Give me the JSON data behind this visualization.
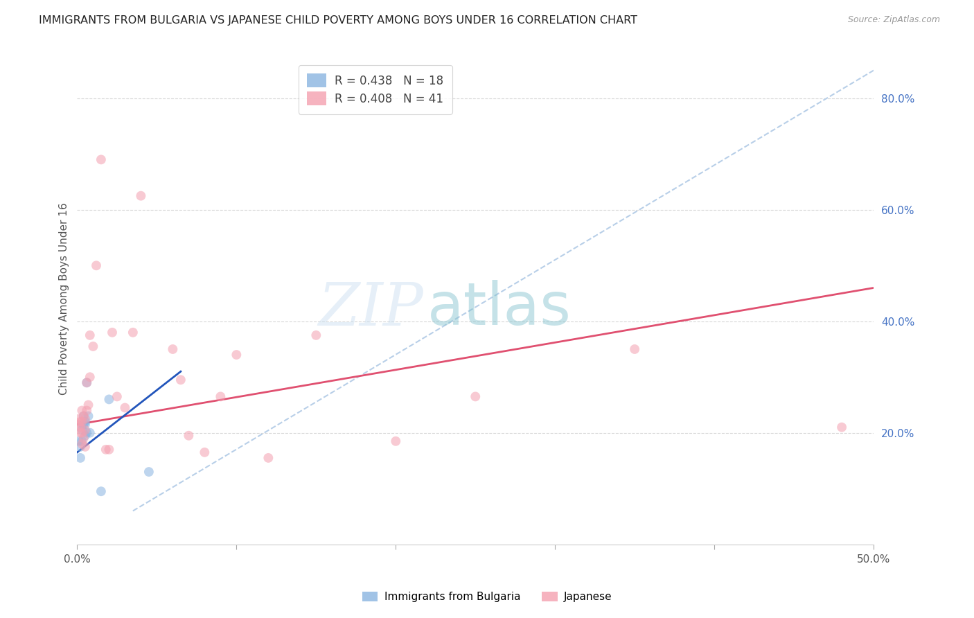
{
  "title": "IMMIGRANTS FROM BULGARIA VS JAPANESE CHILD POVERTY AMONG BOYS UNDER 16 CORRELATION CHART",
  "source": "Source: ZipAtlas.com",
  "ylabel": "Child Poverty Among Boys Under 16",
  "xlim": [
    0.0,
    0.5
  ],
  "ylim": [
    0.0,
    0.88
  ],
  "xticks": [
    0.0,
    0.1,
    0.2,
    0.3,
    0.4,
    0.5
  ],
  "xticklabels": [
    "0.0%",
    "",
    "",
    "",
    "",
    "50.0%"
  ],
  "yticks_right": [
    0.2,
    0.4,
    0.6,
    0.8
  ],
  "yticklabels_right": [
    "20.0%",
    "40.0%",
    "60.0%",
    "80.0%"
  ],
  "legend_label1": "R = 0.438   N = 18",
  "legend_label2": "R = 0.408   N = 41",
  "legend_color1": "#8ab4e0",
  "legend_color2": "#f4a0b0",
  "bg_color": "#ffffff",
  "plot_bg_color": "#ffffff",
  "grid_color": "#d8d8d8",
  "blue_scatter_x": [
    0.001,
    0.002,
    0.002,
    0.003,
    0.003,
    0.003,
    0.004,
    0.004,
    0.005,
    0.005,
    0.005,
    0.006,
    0.006,
    0.007,
    0.008,
    0.015,
    0.02,
    0.045
  ],
  "blue_scatter_y": [
    0.185,
    0.155,
    0.175,
    0.205,
    0.215,
    0.185,
    0.215,
    0.23,
    0.195,
    0.215,
    0.22,
    0.2,
    0.29,
    0.23,
    0.2,
    0.095,
    0.26,
    0.13
  ],
  "pink_scatter_x": [
    0.001,
    0.001,
    0.002,
    0.002,
    0.002,
    0.003,
    0.003,
    0.003,
    0.003,
    0.004,
    0.004,
    0.005,
    0.005,
    0.005,
    0.006,
    0.006,
    0.007,
    0.008,
    0.008,
    0.01,
    0.012,
    0.015,
    0.018,
    0.02,
    0.022,
    0.025,
    0.03,
    0.035,
    0.04,
    0.06,
    0.065,
    0.07,
    0.08,
    0.09,
    0.1,
    0.12,
    0.15,
    0.2,
    0.25,
    0.35,
    0.48
  ],
  "pink_scatter_y": [
    0.215,
    0.225,
    0.2,
    0.21,
    0.22,
    0.18,
    0.2,
    0.22,
    0.24,
    0.19,
    0.23,
    0.175,
    0.205,
    0.225,
    0.24,
    0.29,
    0.25,
    0.3,
    0.375,
    0.355,
    0.5,
    0.69,
    0.17,
    0.17,
    0.38,
    0.265,
    0.245,
    0.38,
    0.625,
    0.35,
    0.295,
    0.195,
    0.165,
    0.265,
    0.34,
    0.155,
    0.375,
    0.185,
    0.265,
    0.35,
    0.21
  ],
  "blue_line_x": [
    0.0,
    0.065
  ],
  "blue_line_y": [
    0.165,
    0.31
  ],
  "pink_line_x": [
    0.0,
    0.5
  ],
  "pink_line_y": [
    0.215,
    0.46
  ],
  "diag_line_x": [
    0.035,
    0.5
  ],
  "diag_line_y": [
    0.06,
    0.85
  ],
  "scatter_size": 100,
  "scatter_alpha": 0.55,
  "line_width": 2.0,
  "diag_color": "#b8cfe8",
  "blue_line_color": "#2255bb",
  "pink_line_color": "#e05070"
}
